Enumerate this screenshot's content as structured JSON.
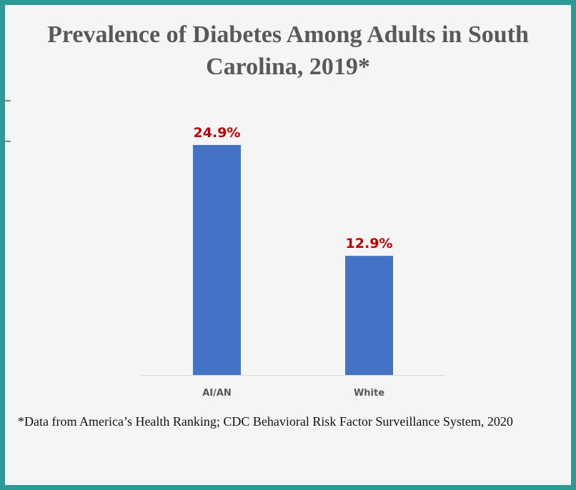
{
  "chart_data": {
    "type": "bar",
    "title": "Prevalence of Diabetes Among Adults in South Carolina, 2019*",
    "categories": [
      "AI/AN",
      "White"
    ],
    "values": [
      24.9,
      12.9
    ],
    "data_labels": [
      "24.9%",
      "12.9%"
    ],
    "xlabel": "",
    "ylabel": "",
    "ylim": [
      0,
      24.9
    ],
    "grid": false,
    "legend": "none",
    "unit": "%"
  },
  "footnote": "*Data from America’s Health Ranking; CDC Behavioral Risk Factor Surveillance System, 2020",
  "colors": {
    "bar": "#4472c4",
    "data_label": "#c00000",
    "frame_border": "#2e9a98",
    "background": "#f5f5f5",
    "axis": "#d9d9d9"
  }
}
